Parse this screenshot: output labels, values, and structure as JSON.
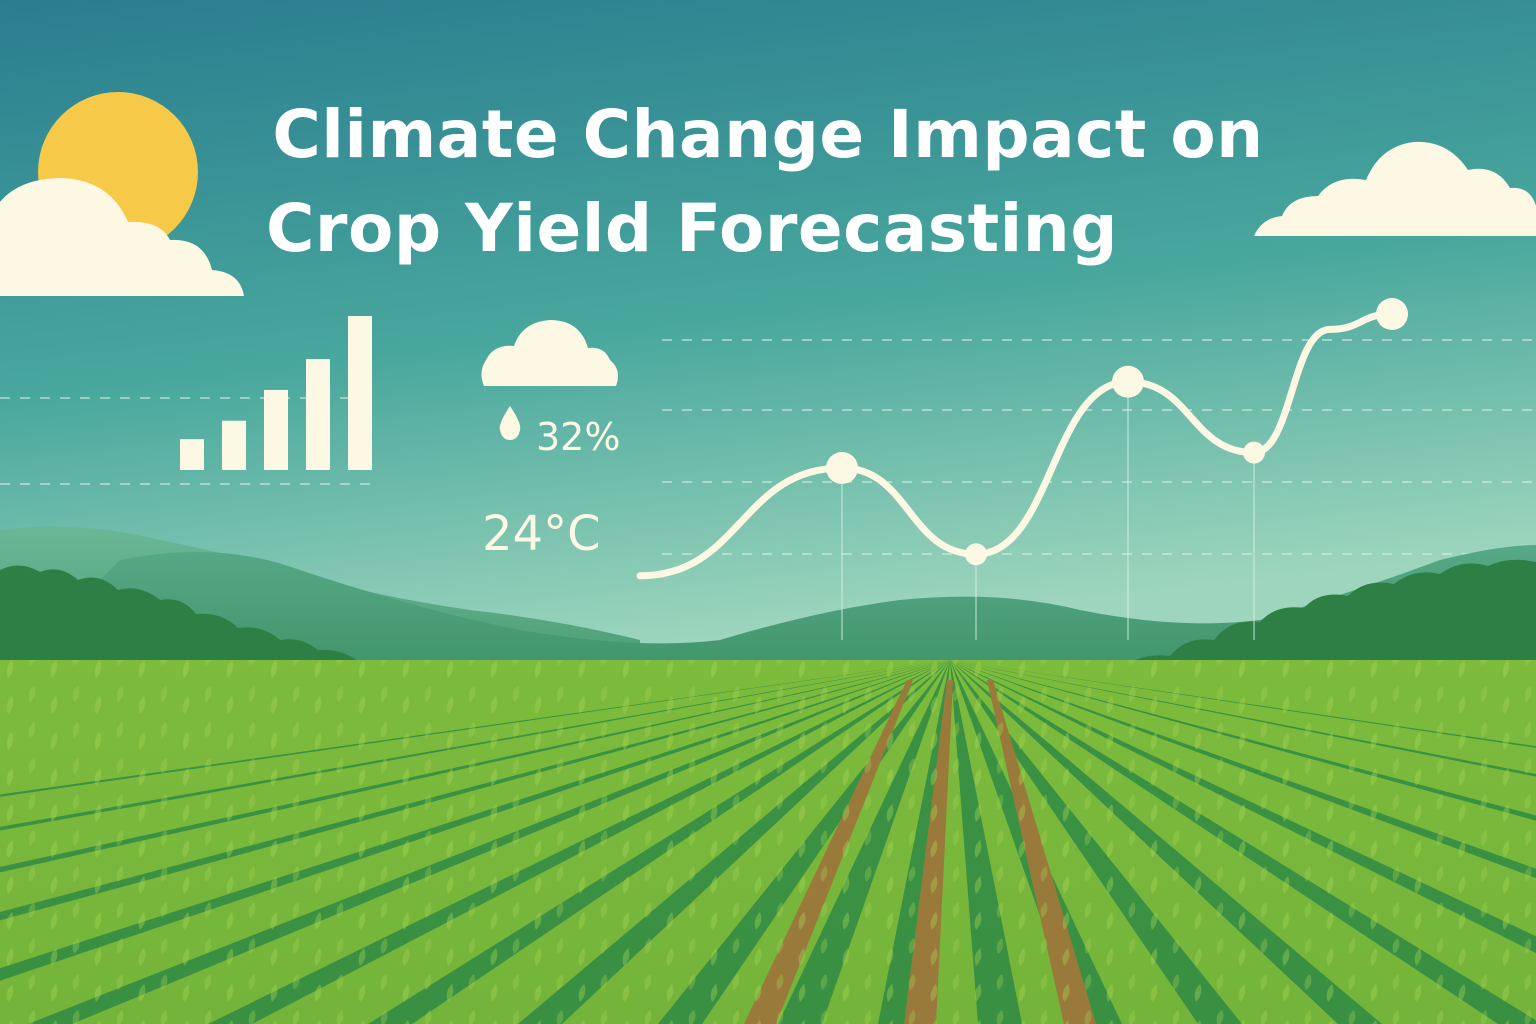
{
  "title": {
    "line1": "Climate Change Impact on",
    "line2": "Crop Yield Forecasting"
  },
  "stats": {
    "humidity": "32%",
    "temperature": "24°C"
  },
  "icons": [
    "sun-icon",
    "cloud-icon",
    "rain-cloud-icon",
    "water-drop-icon",
    "bar-chart-icon"
  ],
  "colors": {
    "sky_top": "#2a7d8f",
    "sky_bottom": "#7fc7b3",
    "sun": "#f7c948",
    "cloud": "#fdf8e3",
    "chart_line": "#fdf8e3",
    "field_light": "#8cc63f",
    "field_dark": "#2f8a45",
    "soil": "#9a7a3a"
  },
  "chart_data": [
    {
      "type": "line",
      "title": "",
      "xlabel": "",
      "ylabel": "",
      "x": [
        1,
        2,
        3,
        4,
        5,
        6,
        7
      ],
      "values": [
        0.15,
        0.5,
        0.22,
        0.78,
        0.55,
        0.95,
        1.0
      ],
      "markers": [
        false,
        true,
        true,
        true,
        true,
        false,
        true
      ],
      "ylim": [
        0,
        1
      ],
      "grid": true
    },
    {
      "type": "bar",
      "title": "",
      "values": [
        0.2,
        0.32,
        0.52,
        0.72,
        1.0
      ]
    }
  ]
}
